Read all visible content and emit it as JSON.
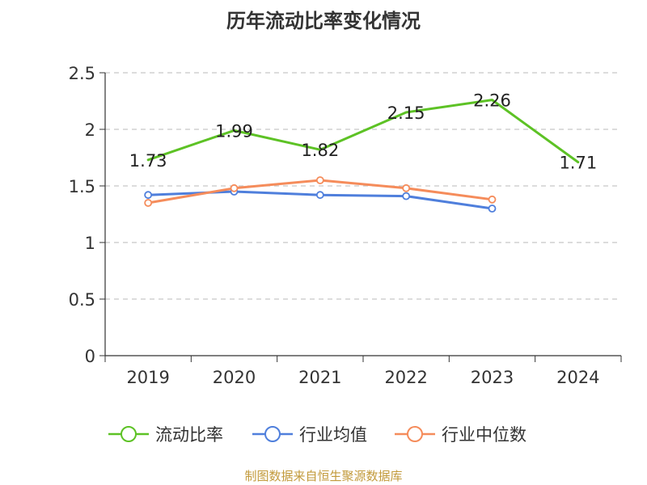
{
  "chart_data": {
    "type": "line",
    "title": "历年流动比率变化情况",
    "categories": [
      "2019",
      "2020",
      "2021",
      "2022",
      "2023",
      "2024"
    ],
    "y_ticks": [
      "0",
      "0.5",
      "1",
      "1.5",
      "2",
      "2.5"
    ],
    "ylim": [
      0,
      2.5
    ],
    "grid": true,
    "legend_position": "bottom",
    "series": [
      {
        "name": "流动比率",
        "color": "#5dc225",
        "values": [
          1.73,
          1.99,
          1.82,
          2.15,
          2.26,
          1.71
        ],
        "labels": [
          "1.73",
          "1.99",
          "1.82",
          "2.15",
          "2.26",
          "1.71"
        ]
      },
      {
        "name": "行业均值",
        "color": "#4f7fdc",
        "values": [
          1.42,
          1.45,
          1.42,
          1.41,
          1.3,
          null
        ]
      },
      {
        "name": "行业中位数",
        "color": "#f58c5b",
        "values": [
          1.35,
          1.48,
          1.55,
          1.48,
          1.38,
          null
        ]
      }
    ]
  },
  "footer": {
    "source": "制图数据来自恒生聚源数据库"
  }
}
